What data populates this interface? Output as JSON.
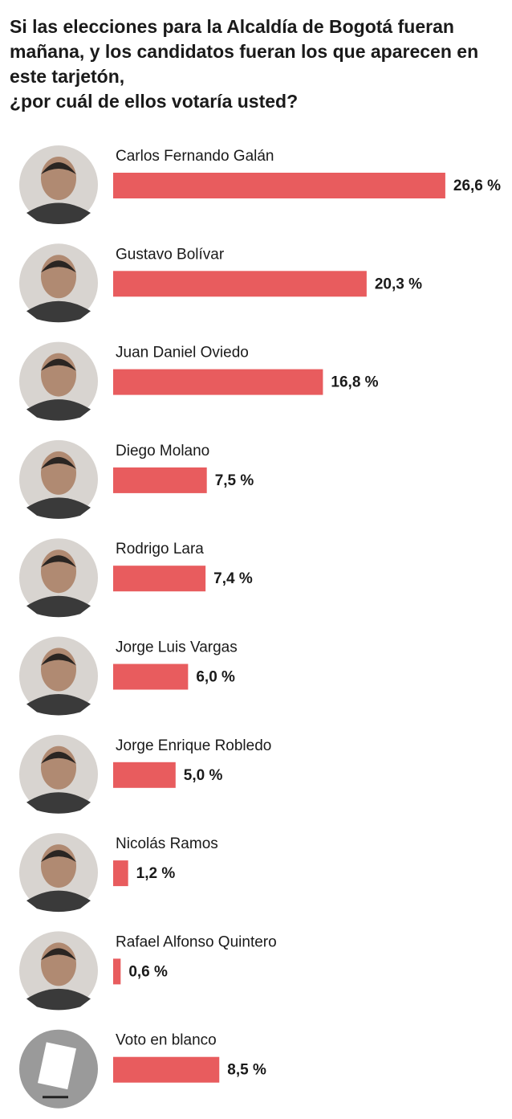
{
  "chart_data": {
    "type": "bar",
    "orientation": "horizontal",
    "title": "Si las elecciones para la Alcaldía de Bogotá fueran mañana, y los candidatos fueran los que aparecen en este tarjetón,\n¿por cuál de ellos votaría usted?",
    "categories": [
      "Carlos Fernando Galán",
      "Gustavo Bolívar",
      "Juan Daniel Oviedo",
      "Diego Molano",
      "Rodrigo Lara",
      "Jorge Luis Vargas",
      "Jorge Enrique Robledo",
      "Nicolás Ramos",
      "Rafael Alfonso Quintero",
      "Voto en blanco"
    ],
    "values": [
      26.6,
      20.3,
      16.8,
      7.5,
      7.4,
      6.0,
      5.0,
      1.2,
      0.6,
      8.5
    ],
    "value_labels": [
      "26,6 %",
      "20,3 %",
      "16,8 %",
      "7,5 %",
      "7,4 %",
      "6,0 %",
      "5,0 %",
      "1,2 %",
      "0,6 %",
      "8,5 %"
    ],
    "color": "#e85c5e"
  }
}
